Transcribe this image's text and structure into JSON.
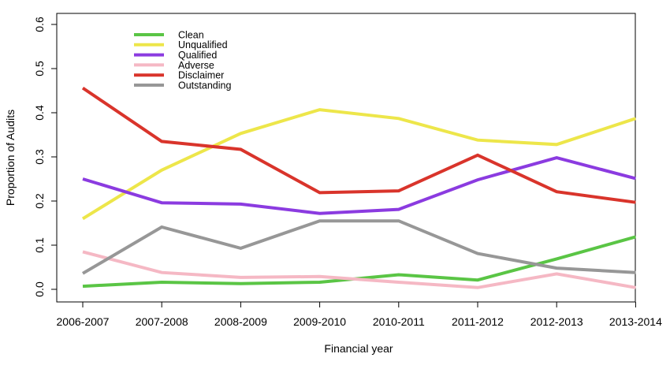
{
  "chart_data": {
    "type": "line",
    "title": "",
    "xlabel": "Financial year",
    "ylabel": "Proportion of Audits",
    "categories": [
      "2006-2007",
      "2007-2008",
      "2008-2009",
      "2009-2010",
      "2010-2011",
      "2011-2012",
      "2012-2013",
      "2013-2014"
    ],
    "ylim": [
      0,
      0.6
    ],
    "yticks": [
      "0.0",
      "0.1",
      "0.2",
      "0.3",
      "0.4",
      "0.5",
      "0.6"
    ],
    "grid": false,
    "legend_position": "top-left",
    "series": [
      {
        "name": "Clean",
        "color": "#5ac545",
        "values": [
          0.007,
          0.016,
          0.013,
          0.016,
          0.033,
          0.021,
          0.069,
          0.119
        ]
      },
      {
        "name": "Unqualified",
        "color": "#ede64a",
        "values": [
          0.16,
          0.27,
          0.353,
          0.407,
          0.387,
          0.338,
          0.328,
          0.387
        ]
      },
      {
        "name": "Qualified",
        "color": "#8b3be0",
        "values": [
          0.25,
          0.196,
          0.193,
          0.172,
          0.181,
          0.248,
          0.298,
          0.251
        ]
      },
      {
        "name": "Adverse",
        "color": "#f5b8c4",
        "values": [
          0.085,
          0.038,
          0.027,
          0.029,
          0.016,
          0.004,
          0.035,
          0.004
        ]
      },
      {
        "name": "Disclaimer",
        "color": "#d9342b",
        "values": [
          0.456,
          0.335,
          0.317,
          0.219,
          0.223,
          0.304,
          0.221,
          0.197
        ]
      },
      {
        "name": "Outstanding",
        "color": "#979797",
        "values": [
          0.036,
          0.141,
          0.093,
          0.155,
          0.155,
          0.081,
          0.048,
          0.038
        ]
      }
    ]
  }
}
